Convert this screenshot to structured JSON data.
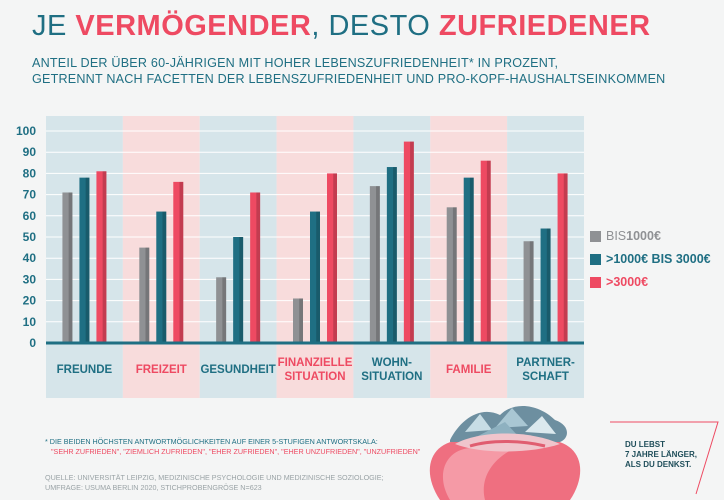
{
  "title": {
    "part1": "JE ",
    "part2": "VERMÖGENDER",
    "part3": ", DESTO ",
    "part4": "ZUFRIEDENER"
  },
  "subtitle": {
    "line1": "ANTEIL DER ÜBER 60-JÄHRIGEN MIT HOHER LEBENSZUFRIEDENHEIT* IN PROZENT,",
    "line2": "GETRENNT NACH FACETTEN DER LEBENSZUFRIEDENHEIT UND PRO-KOPF-HAUSHALTSEINKOMMEN"
  },
  "legend": [
    {
      "prefix": "",
      "label_light": "BIS ",
      "label_bold": "1000€",
      "color": "#8f9194"
    },
    {
      "prefix": "> ",
      "label_light": "",
      "label_bold": "1000€ BIS 3000€",
      "color": "#1f6f83"
    },
    {
      "prefix": "> ",
      "label_light": "",
      "label_bold": "3000€",
      "color": "#ee4a62"
    }
  ],
  "footnote": {
    "line1": "* DIE BEIDEN HÖCHSTEN ANTWORTMÖGLICHKEITEN AUF EINER 5-STUFIGEN ANTWORTSKALA:",
    "line2": "\"SEHR ZUFRIEDEN\", \"ZIEMLICH ZUFRIEDEN\", \"EHER ZUFRIEDEN\", \"EHER UNZUFRIEDEN\", \"UNZUFRIEDEN\""
  },
  "source": {
    "line1": "QUELLE: UNIVERSITÄT LEIPZIG, MEDIZINISCHE PSYCHOLOGIE UND MEDIZINISCHE SOZIOLOGIE;",
    "line2": "UMFRAGE: USUMA BERLIN 2020, STICHPROBENGRÖSE N=623"
  },
  "promo": {
    "line1": "DU LEBST",
    "line2": "7 JAHRE LÄNGER,",
    "line3": "ALS DU DENKST."
  },
  "colors": {
    "teal": "#1f6f83",
    "pink": "#ee4a62",
    "grey": "#8f9194",
    "band_blue": "#d6e5ea",
    "band_pink": "#f8dcdc"
  },
  "chart_data": {
    "type": "bar",
    "categories": [
      [
        "FREUNDE"
      ],
      [
        "FREIZEIT"
      ],
      [
        "GESUNDHEIT"
      ],
      [
        "FINANZIELLE",
        "SITUATION"
      ],
      [
        "WOHN-",
        "SITUATION"
      ],
      [
        "FAMILIE"
      ],
      [
        "PARTNER-",
        "SCHAFT"
      ]
    ],
    "category_color": [
      "teal",
      "pink",
      "teal",
      "pink",
      "teal",
      "pink",
      "teal"
    ],
    "series": [
      {
        "name": "BIS 1000€",
        "color": "#8f9194",
        "values": [
          71,
          45,
          31,
          21,
          74,
          64,
          48
        ]
      },
      {
        "name": "> 1000€ BIS 3000€",
        "color": "#1f6f83",
        "values": [
          78,
          62,
          50,
          62,
          83,
          78,
          54
        ]
      },
      {
        "name": "> 3000€",
        "color": "#ee4a62",
        "values": [
          81,
          76,
          71,
          80,
          95,
          86,
          80
        ]
      }
    ],
    "ylim": [
      0,
      100
    ],
    "yticks": [
      0,
      10,
      20,
      30,
      40,
      50,
      60,
      70,
      80,
      90,
      100
    ]
  }
}
